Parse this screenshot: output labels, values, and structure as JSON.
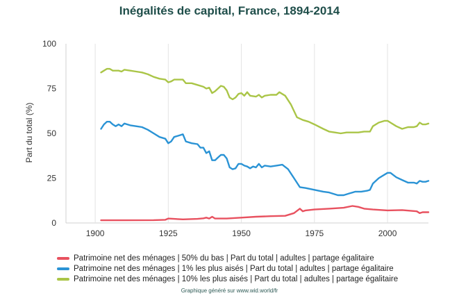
{
  "chart_data": {
    "type": "line",
    "title": "Inégalités de capital, France, 1894-2014",
    "ylabel": "Part du total (%)",
    "xlabel": "",
    "xlim": [
      1890,
      2014
    ],
    "ylim": [
      0,
      100
    ],
    "x_ticks": [
      1900,
      1925,
      1950,
      1975,
      2000
    ],
    "y_ticks": [
      0,
      25,
      50,
      75,
      100
    ],
    "grid": "vertical",
    "legend_position": "bottom",
    "series": [
      {
        "name": "Patrimoine net des ménages | 50% du bas | Part du total | adultes | partage égalitaire",
        "color": "#e8515f",
        "points": [
          [
            1902,
            1.5
          ],
          [
            1910,
            1.5
          ],
          [
            1920,
            1.6
          ],
          [
            1924,
            1.8
          ],
          [
            1925,
            2.5
          ],
          [
            1930,
            2.0
          ],
          [
            1935,
            2.3
          ],
          [
            1937,
            2.6
          ],
          [
            1938,
            3.0
          ],
          [
            1939,
            2.5
          ],
          [
            1940,
            3.5
          ],
          [
            1941,
            2.5
          ],
          [
            1945,
            2.5
          ],
          [
            1950,
            3.0
          ],
          [
            1955,
            3.5
          ],
          [
            1960,
            3.8
          ],
          [
            1965,
            4.0
          ],
          [
            1968,
            5.5
          ],
          [
            1970,
            8.0
          ],
          [
            1971,
            6.5
          ],
          [
            1972,
            7.0
          ],
          [
            1975,
            7.5
          ],
          [
            1980,
            8.0
          ],
          [
            1985,
            8.5
          ],
          [
            1988,
            9.5
          ],
          [
            1990,
            9.0
          ],
          [
            1992,
            8.0
          ],
          [
            1995,
            7.5
          ],
          [
            2000,
            7.0
          ],
          [
            2005,
            7.2
          ],
          [
            2010,
            6.5
          ],
          [
            2011,
            5.5
          ],
          [
            2012,
            6.0
          ],
          [
            2014,
            6.0
          ]
        ]
      },
      {
        "name": "Patrimoine net des ménages | 1% les plus aisés | Part du total | adultes | partage égalitaire",
        "color": "#2a93d5",
        "points": [
          [
            1902,
            52.5
          ],
          [
            1903,
            55
          ],
          [
            1904,
            56.5
          ],
          [
            1905,
            56.5
          ],
          [
            1906,
            55
          ],
          [
            1907,
            54
          ],
          [
            1908,
            55
          ],
          [
            1909,
            54
          ],
          [
            1910,
            55.5
          ],
          [
            1911,
            55
          ],
          [
            1912,
            54.5
          ],
          [
            1914,
            54
          ],
          [
            1916,
            53.5
          ],
          [
            1918,
            52
          ],
          [
            1920,
            50
          ],
          [
            1922,
            48
          ],
          [
            1924,
            47
          ],
          [
            1925,
            44.5
          ],
          [
            1926,
            45.5
          ],
          [
            1927,
            48
          ],
          [
            1929,
            49
          ],
          [
            1930,
            49.5
          ],
          [
            1931,
            45.5
          ],
          [
            1933,
            44.5
          ],
          [
            1935,
            44
          ],
          [
            1936,
            42
          ],
          [
            1937,
            42
          ],
          [
            1938,
            39
          ],
          [
            1939,
            40
          ],
          [
            1940,
            35
          ],
          [
            1941,
            35
          ],
          [
            1942,
            36.5
          ],
          [
            1943,
            38
          ],
          [
            1944,
            38
          ],
          [
            1945,
            36
          ],
          [
            1946,
            31
          ],
          [
            1947,
            30
          ],
          [
            1948,
            30.5
          ],
          [
            1949,
            33
          ],
          [
            1950,
            33
          ],
          [
            1951,
            32
          ],
          [
            1952,
            31.5
          ],
          [
            1953,
            30.5
          ],
          [
            1954,
            31.5
          ],
          [
            1955,
            31
          ],
          [
            1956,
            33
          ],
          [
            1957,
            31
          ],
          [
            1958,
            32
          ],
          [
            1960,
            31.5
          ],
          [
            1962,
            32
          ],
          [
            1964,
            32.5
          ],
          [
            1966,
            30
          ],
          [
            1968,
            25
          ],
          [
            1970,
            20
          ],
          [
            1972,
            19.5
          ],
          [
            1975,
            18.5
          ],
          [
            1978,
            17.5
          ],
          [
            1980,
            17
          ],
          [
            1983,
            15.5
          ],
          [
            1985,
            15.5
          ],
          [
            1987,
            16.5
          ],
          [
            1989,
            17.5
          ],
          [
            1991,
            17.5
          ],
          [
            1993,
            18
          ],
          [
            1994,
            18.5
          ],
          [
            1995,
            22
          ],
          [
            1997,
            25
          ],
          [
            1999,
            27
          ],
          [
            2000,
            28
          ],
          [
            2001,
            28
          ],
          [
            2003,
            25.5
          ],
          [
            2005,
            24
          ],
          [
            2007,
            22.5
          ],
          [
            2009,
            22.5
          ],
          [
            2010,
            22
          ],
          [
            2011,
            23.5
          ],
          [
            2012,
            23
          ],
          [
            2013,
            23
          ],
          [
            2014,
            23.5
          ]
        ]
      },
      {
        "name": "Patrimoine net des ménages | 10% les plus aisés | Part du total | adultes | partage égalitaire",
        "color": "#aac547",
        "points": [
          [
            1902,
            84
          ],
          [
            1903,
            85
          ],
          [
            1904,
            86
          ],
          [
            1905,
            86
          ],
          [
            1906,
            85
          ],
          [
            1908,
            85
          ],
          [
            1909,
            84.5
          ],
          [
            1910,
            85.5
          ],
          [
            1912,
            85
          ],
          [
            1914,
            84.5
          ],
          [
            1916,
            84
          ],
          [
            1918,
            83
          ],
          [
            1920,
            81.5
          ],
          [
            1922,
            80.5
          ],
          [
            1924,
            80
          ],
          [
            1925,
            78.5
          ],
          [
            1926,
            79
          ],
          [
            1927,
            80
          ],
          [
            1929,
            80
          ],
          [
            1930,
            80
          ],
          [
            1931,
            78
          ],
          [
            1933,
            78
          ],
          [
            1935,
            77
          ],
          [
            1937,
            76
          ],
          [
            1938,
            75
          ],
          [
            1939,
            75.5
          ],
          [
            1940,
            72.5
          ],
          [
            1941,
            73.5
          ],
          [
            1942,
            75
          ],
          [
            1943,
            76.5
          ],
          [
            1944,
            76
          ],
          [
            1945,
            74
          ],
          [
            1946,
            70
          ],
          [
            1947,
            69
          ],
          [
            1948,
            70
          ],
          [
            1949,
            72
          ],
          [
            1950,
            72.5
          ],
          [
            1951,
            71
          ],
          [
            1952,
            73
          ],
          [
            1953,
            71
          ],
          [
            1955,
            70.5
          ],
          [
            1956,
            71.5
          ],
          [
            1957,
            70
          ],
          [
            1958,
            71
          ],
          [
            1960,
            71.5
          ],
          [
            1962,
            71.5
          ],
          [
            1963,
            73
          ],
          [
            1965,
            71
          ],
          [
            1967,
            66
          ],
          [
            1969,
            59
          ],
          [
            1971,
            57.5
          ],
          [
            1973,
            56.5
          ],
          [
            1975,
            55
          ],
          [
            1978,
            52.5
          ],
          [
            1980,
            51
          ],
          [
            1982,
            50.5
          ],
          [
            1984,
            50
          ],
          [
            1986,
            50.5
          ],
          [
            1988,
            50.5
          ],
          [
            1990,
            50.5
          ],
          [
            1992,
            51
          ],
          [
            1994,
            51
          ],
          [
            1995,
            54
          ],
          [
            1997,
            56
          ],
          [
            1999,
            57
          ],
          [
            2000,
            57
          ],
          [
            2001,
            56
          ],
          [
            2003,
            54
          ],
          [
            2005,
            52.5
          ],
          [
            2007,
            53.5
          ],
          [
            2009,
            53.5
          ],
          [
            2010,
            54
          ],
          [
            2011,
            56
          ],
          [
            2012,
            55
          ],
          [
            2013,
            55
          ],
          [
            2014,
            55.5
          ]
        ]
      }
    ]
  },
  "footer": "Graphique généré sur www.wid.world/fr"
}
